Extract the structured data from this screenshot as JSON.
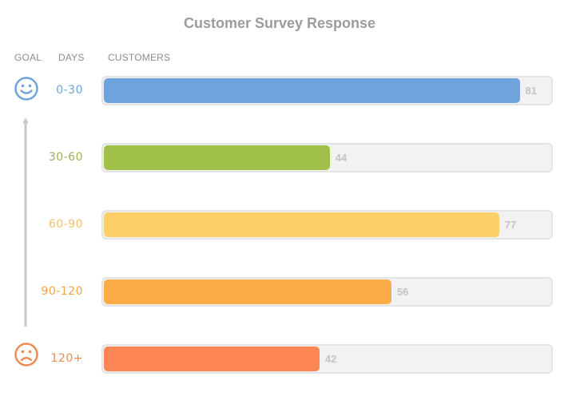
{
  "chart_data": {
    "type": "bar",
    "orientation": "horizontal",
    "title": "Customer Survey Response",
    "column_headers": {
      "goal": "GOAL",
      "days": "DAYS",
      "customers": "CUSTOMERS"
    },
    "categories": [
      "0-30",
      "30-60",
      "60-90",
      "90-120",
      "120+"
    ],
    "values": [
      81,
      44,
      77,
      56,
      42
    ],
    "xlim": [
      0,
      100
    ],
    "colors": [
      "#6fa3de",
      "#a0c04a",
      "#fccf68",
      "#fdad48",
      "#fb8654"
    ],
    "label_colors": [
      "#6fa3de",
      "#a0b050",
      "#f7c16a",
      "#f5a442",
      "#f08a52"
    ],
    "value_label_color": "#c4c4c4",
    "goal_top_icon": "smiley-face-icon",
    "goal_bottom_icon": "sad-face-icon",
    "goal_top_color": "#6fa3de",
    "goal_bottom_color": "#f08a52",
    "grid": false,
    "legend": "none"
  }
}
